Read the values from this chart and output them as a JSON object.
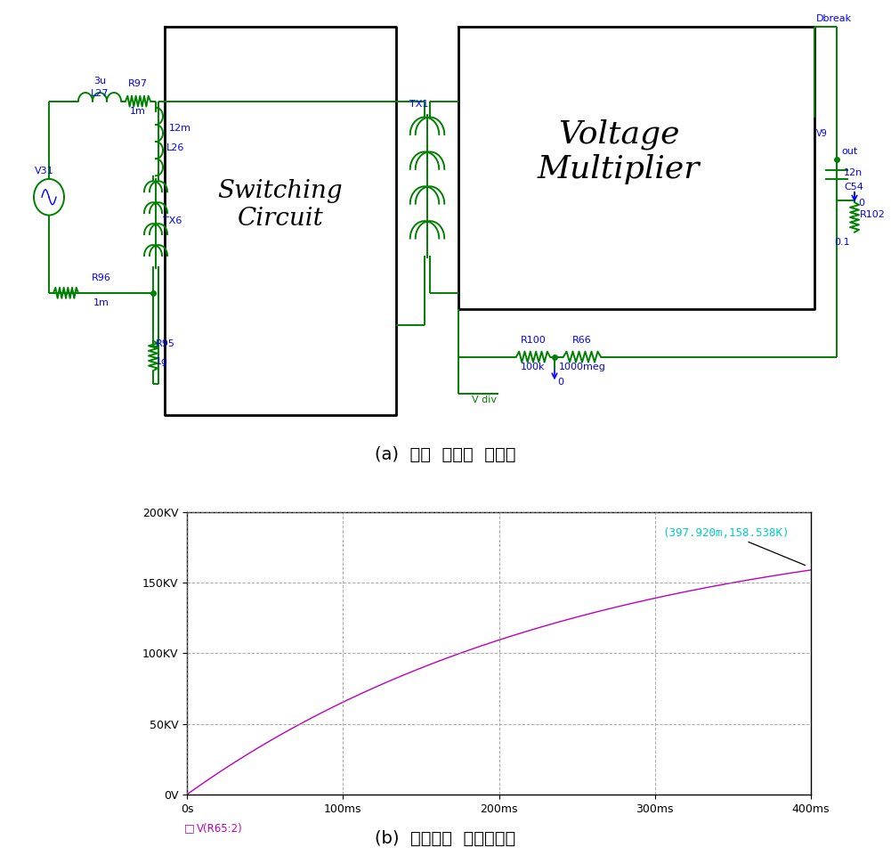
{
  "title_a": "(a)  고압  충전부  회로도",
  "title_b": "(b)  충전전압  시뮬레이션",
  "green": "#008000",
  "blue": "#0000FF",
  "magenta": "#BB00BB",
  "cyan": "#00CCCC",
  "annotation_text": "(397.920m,158.538K)",
  "legend_text": "V(R65:2)",
  "yticks": [
    "0V",
    "50KV",
    "100KV",
    "150KV",
    "200KV"
  ],
  "yvals": [
    0,
    50000,
    100000,
    150000,
    200000
  ],
  "xticks": [
    "0s",
    "100ms",
    "200ms",
    "300ms",
    "400ms"
  ],
  "xvals": [
    0,
    0.1,
    0.2,
    0.3,
    0.4
  ],
  "xlim": [
    0,
    0.4
  ],
  "ylim": [
    0,
    200000
  ],
  "switching_circuit_label": "Switching\nCircuit",
  "voltage_multiplier_label": "Voltage\nMultiplier"
}
